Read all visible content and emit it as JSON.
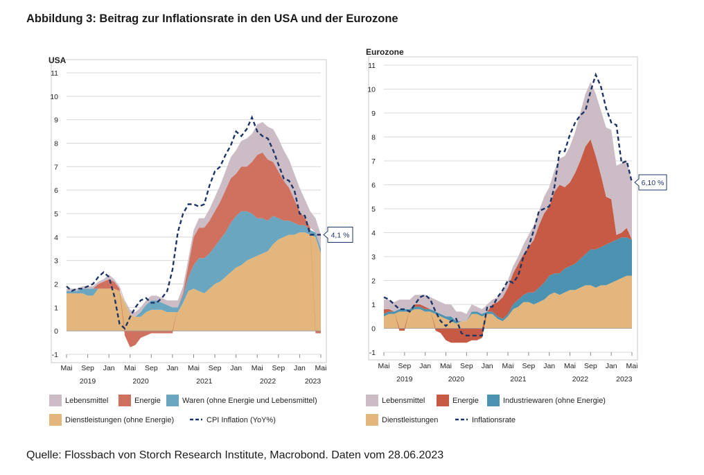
{
  "figure_title": "Abbildung 3: Beitrag zur Inflationsrate in den USA und der Eurozone",
  "source": "Quelle: Flossbach von Storch Research Institute, Macrobond. Daten vom 28.06.2023",
  "colors": {
    "services": "#e2b67d",
    "goods": "#6aa6bf",
    "energy": "#d0705e",
    "food": "#cbbcc5",
    "ez_industrial": "#4b93b1",
    "ez_energy": "#c65a45",
    "line": "#1c3566",
    "grid": "#d8d8d8"
  },
  "chart_data": [
    {
      "type": "area",
      "region_label": "USA",
      "ylim": [
        -1,
        11
      ],
      "yticks": [
        -1,
        0,
        1,
        2,
        3,
        4,
        5,
        6,
        7,
        8,
        9,
        10,
        11
      ],
      "xlim": [
        0,
        48
      ],
      "month_ticks": [
        {
          "x": 0,
          "label": "Mai"
        },
        {
          "x": 4,
          "label": "Sep"
        },
        {
          "x": 8,
          "label": "Jan"
        },
        {
          "x": 12,
          "label": "Mai"
        },
        {
          "x": 16,
          "label": "Sep"
        },
        {
          "x": 20,
          "label": "Jan"
        },
        {
          "x": 24,
          "label": "Mai"
        },
        {
          "x": 28,
          "label": "Sep"
        },
        {
          "x": 32,
          "label": "Jan"
        },
        {
          "x": 36,
          "label": "Mai"
        },
        {
          "x": 40,
          "label": "Sep"
        },
        {
          "x": 44,
          "label": "Jan"
        },
        {
          "x": 48,
          "label": "Mai"
        }
      ],
      "year_ticks": [
        {
          "x": 4,
          "label": "2019"
        },
        {
          "x": 14,
          "label": "2020"
        },
        {
          "x": 26,
          "label": "2021"
        },
        {
          "x": 38,
          "label": "2022"
        },
        {
          "x": 46.5,
          "label": "2023"
        }
      ],
      "x": [
        0,
        1,
        2,
        3,
        4,
        5,
        6,
        7,
        8,
        9,
        10,
        11,
        12,
        13,
        14,
        15,
        16,
        17,
        18,
        19,
        20,
        21,
        22,
        23,
        24,
        25,
        26,
        27,
        28,
        29,
        30,
        31,
        32,
        33,
        34,
        35,
        36,
        37,
        38,
        39,
        40,
        41,
        42,
        43,
        44,
        45,
        46,
        47,
        48
      ],
      "series": [
        {
          "name": "Dienstleistungen (ohne Energie)",
          "key": "services",
          "values": [
            1.6,
            1.6,
            1.6,
            1.6,
            1.5,
            1.5,
            1.8,
            1.8,
            1.8,
            1.8,
            1.7,
            1.2,
            0.7,
            0.6,
            0.6,
            0.8,
            0.9,
            0.9,
            0.9,
            0.8,
            0.8,
            0.8,
            1.2,
            1.7,
            1.8,
            1.7,
            1.6,
            1.8,
            2.0,
            2.1,
            2.3,
            2.5,
            2.7,
            2.8,
            3.0,
            3.1,
            3.2,
            3.3,
            3.4,
            3.7,
            3.9,
            4.0,
            4.1,
            4.1,
            4.2,
            4.2,
            4.1,
            4.0,
            3.3
          ]
        },
        {
          "name": "Waren (ohne Energie und Lebensmittel)",
          "key": "goods",
          "values": [
            0.1,
            0.1,
            0.1,
            0.2,
            0.3,
            0.3,
            0.0,
            0.0,
            0.0,
            0.0,
            0.0,
            0.0,
            0.0,
            0.0,
            0.2,
            0.3,
            0.4,
            0.4,
            0.3,
            0.3,
            0.2,
            0.2,
            0.3,
            0.6,
            1.0,
            1.4,
            1.5,
            1.5,
            1.6,
            1.8,
            1.9,
            2.1,
            2.2,
            2.3,
            2.1,
            1.9,
            1.6,
            1.5,
            1.3,
            1.2,
            0.9,
            0.7,
            0.6,
            0.5,
            0.3,
            0.3,
            0.2,
            0.2,
            0.2
          ]
        },
        {
          "name": "Energie",
          "key": "energy",
          "values": [
            0.0,
            0.0,
            0.0,
            0.0,
            0.0,
            0.0,
            0.2,
            0.3,
            0.4,
            0.3,
            0.1,
            -0.2,
            -0.7,
            -0.6,
            -0.3,
            -0.2,
            -0.1,
            -0.1,
            -0.1,
            -0.1,
            -0.1,
            0.0,
            0.1,
            0.5,
            1.2,
            1.3,
            1.3,
            1.4,
            1.5,
            1.6,
            1.8,
            1.9,
            1.8,
            1.9,
            1.9,
            2.2,
            2.7,
            2.8,
            2.6,
            2.3,
            2.0,
            1.7,
            1.4,
            1.0,
            0.6,
            0.3,
            0.1,
            -0.1,
            -0.1
          ]
        },
        {
          "name": "Lebensmittel",
          "key": "food",
          "values": [
            0.1,
            0.1,
            0.1,
            0.1,
            0.1,
            0.1,
            0.1,
            0.1,
            0.2,
            0.1,
            0.1,
            0.1,
            0.2,
            0.2,
            0.2,
            0.2,
            0.2,
            0.2,
            0.2,
            0.2,
            0.3,
            0.3,
            0.3,
            0.3,
            0.3,
            0.4,
            0.4,
            0.5,
            0.6,
            0.7,
            0.8,
            0.9,
            1.0,
            1.1,
            1.2,
            1.2,
            1.3,
            1.3,
            1.4,
            1.4,
            1.4,
            1.3,
            1.2,
            1.1,
            1.0,
            0.8,
            0.7,
            0.6,
            0.6
          ]
        }
      ],
      "line": {
        "name": "CPI Inflation (YoY%)",
        "values": [
          1.9,
          1.7,
          1.8,
          1.8,
          1.9,
          2.0,
          2.3,
          2.5,
          2.3,
          1.5,
          0.3,
          0.1,
          0.6,
          1.0,
          1.3,
          1.4,
          1.2,
          1.2,
          1.4,
          1.7,
          2.6,
          4.2,
          5.0,
          5.4,
          5.4,
          5.3,
          5.4,
          6.2,
          6.8,
          7.0,
          7.5,
          7.9,
          8.5,
          8.3,
          8.6,
          9.1,
          8.5,
          8.3,
          8.2,
          7.7,
          7.1,
          6.5,
          6.4,
          6.0,
          5.0,
          4.9,
          4.1,
          4.1,
          4.1
        ]
      },
      "label_box": "4,1 %",
      "legend": [
        "Lebensmittel",
        "Energie",
        "Waren (ohne Energie und Lebensmittel)",
        "Dienstleistungen (ohne Energie)",
        "CPI Inflation (YoY%)"
      ]
    },
    {
      "type": "area",
      "region_label": "Eurozone",
      "ylim": [
        -1,
        11
      ],
      "yticks": [
        -1,
        0,
        1,
        2,
        3,
        4,
        5,
        6,
        7,
        8,
        9,
        10,
        11
      ],
      "xlim": [
        0,
        48
      ],
      "month_ticks": [
        {
          "x": 0,
          "label": "Mai"
        },
        {
          "x": 4,
          "label": "Sep"
        },
        {
          "x": 8,
          "label": "Jan"
        },
        {
          "x": 12,
          "label": "Mai"
        },
        {
          "x": 16,
          "label": "Sep"
        },
        {
          "x": 20,
          "label": "Jan"
        },
        {
          "x": 24,
          "label": "Mai"
        },
        {
          "x": 28,
          "label": "Sep"
        },
        {
          "x": 32,
          "label": "Jan"
        },
        {
          "x": 36,
          "label": "Mai"
        },
        {
          "x": 40,
          "label": "Sep"
        },
        {
          "x": 44,
          "label": "Jan"
        },
        {
          "x": 48,
          "label": "Mai"
        }
      ],
      "year_ticks": [
        {
          "x": 4,
          "label": "2019"
        },
        {
          "x": 14,
          "label": "2020"
        },
        {
          "x": 26,
          "label": "2021"
        },
        {
          "x": 38,
          "label": "2022"
        },
        {
          "x": 46.5,
          "label": "2023"
        }
      ],
      "x": [
        0,
        1,
        2,
        3,
        4,
        5,
        6,
        7,
        8,
        9,
        10,
        11,
        12,
        13,
        14,
        15,
        16,
        17,
        18,
        19,
        20,
        21,
        22,
        23,
        24,
        25,
        26,
        27,
        28,
        29,
        30,
        31,
        32,
        33,
        34,
        35,
        36,
        37,
        38,
        39,
        40,
        41,
        42,
        43,
        44,
        45,
        46,
        47,
        48
      ],
      "series": [
        {
          "name": "Dienstleistungen",
          "key": "services",
          "values": [
            0.5,
            0.6,
            0.6,
            0.7,
            0.7,
            0.7,
            0.8,
            0.8,
            0.7,
            0.7,
            0.6,
            0.5,
            0.4,
            0.3,
            0.2,
            0.3,
            0.3,
            0.6,
            0.6,
            0.5,
            0.6,
            0.6,
            0.4,
            0.3,
            0.5,
            0.8,
            0.9,
            1.1,
            1.1,
            1.0,
            1.1,
            1.2,
            1.4,
            1.5,
            1.4,
            1.5,
            1.6,
            1.6,
            1.7,
            1.8,
            1.8,
            1.7,
            1.8,
            1.8,
            1.9,
            2.0,
            2.1,
            2.2,
            2.2
          ]
        },
        {
          "name": "Industriewaren (ohne Energie)",
          "key": "goods",
          "values": [
            0.1,
            0.1,
            0.1,
            0.1,
            0.1,
            0.1,
            0.1,
            0.1,
            0.1,
            0.1,
            0.1,
            0.1,
            0.1,
            0.2,
            0.1,
            0.0,
            0.0,
            0.1,
            0.1,
            0.1,
            0.1,
            0.1,
            0.1,
            0.1,
            0.1,
            0.2,
            0.3,
            0.3,
            0.4,
            0.5,
            0.6,
            0.7,
            0.8,
            0.8,
            0.9,
            1.0,
            1.0,
            1.1,
            1.2,
            1.3,
            1.5,
            1.6,
            1.6,
            1.7,
            1.7,
            1.7,
            1.7,
            1.6,
            1.5
          ]
        },
        {
          "name": "Energie",
          "key": "energy",
          "values": [
            0.2,
            0.1,
            0.0,
            -0.1,
            -0.1,
            0.0,
            0.1,
            0.1,
            0.1,
            0.0,
            -0.1,
            -0.2,
            -0.5,
            -0.6,
            -0.6,
            -0.6,
            -0.6,
            -0.5,
            -0.5,
            -0.4,
            0.0,
            0.3,
            0.6,
            0.9,
            1.1,
            1.3,
            1.5,
            1.7,
            1.9,
            2.2,
            2.6,
            2.9,
            2.9,
            3.4,
            3.7,
            3.4,
            3.5,
            3.8,
            4.1,
            4.5,
            4.6,
            3.9,
            3.0,
            2.0,
            1.8,
            0.2,
            0.2,
            0.4,
            0.0
          ]
        },
        {
          "name": "Lebensmittel",
          "key": "food",
          "values": [
            0.4,
            0.4,
            0.4,
            0.4,
            0.4,
            0.4,
            0.4,
            0.4,
            0.5,
            0.5,
            0.5,
            0.5,
            0.5,
            0.5,
            0.4,
            0.4,
            0.3,
            0.3,
            0.2,
            0.2,
            0.3,
            0.2,
            0.2,
            0.3,
            0.3,
            0.3,
            0.3,
            0.4,
            0.5,
            0.6,
            0.6,
            0.7,
            0.8,
            0.9,
            1.1,
            1.3,
            1.5,
            1.7,
            2.0,
            2.2,
            2.4,
            2.6,
            2.7,
            2.9,
            2.9,
            2.9,
            2.9,
            2.8,
            2.4
          ]
        }
      ],
      "line": {
        "name": "Inflationsrate",
        "values": [
          1.3,
          1.2,
          1.0,
          0.8,
          0.8,
          0.7,
          1.0,
          1.3,
          1.4,
          1.2,
          0.7,
          0.3,
          0.1,
          0.3,
          0.4,
          -0.2,
          -0.3,
          -0.3,
          -0.3,
          -0.3,
          0.9,
          0.9,
          1.3,
          1.6,
          2.0,
          1.9,
          2.2,
          3.0,
          3.4,
          4.1,
          4.9,
          5.0,
          5.1,
          5.9,
          7.4,
          7.4,
          8.1,
          8.6,
          8.9,
          9.1,
          9.9,
          10.6,
          10.1,
          9.2,
          8.6,
          8.5,
          6.9,
          7.0,
          6.1
        ]
      },
      "label_box": "6,10 %",
      "legend": [
        "Lebensmittel",
        "Energie",
        "Industriewaren (ohne Energie)",
        "Dienstleistungen",
        "Inflationsrate"
      ]
    }
  ]
}
